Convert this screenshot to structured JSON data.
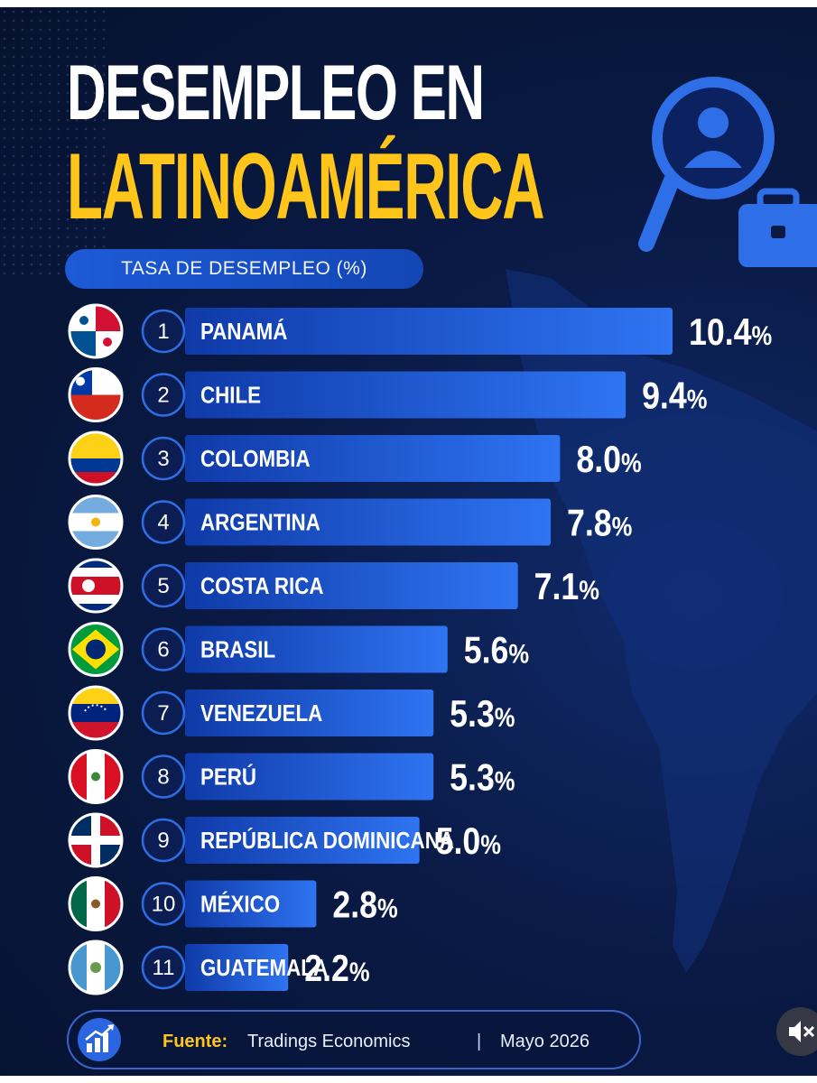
{
  "header": {
    "title_line1": "DESEMPLEO EN",
    "title_line2": "LATINOAMÉRICA",
    "subtitle": "TASA DE DESEMPLEO (%)"
  },
  "footer": {
    "source_label": "Fuente:",
    "source_value": "Tradings Economics",
    "divider": "|",
    "date": "Mayo 2026"
  },
  "icons": {
    "search": "search-person-icon",
    "briefcase": "briefcase-icon",
    "growth": "growth-chart-icon",
    "mute": "mute-icon"
  },
  "colors": {
    "background": "#0a1a45",
    "accent_yellow": "#ffc51a",
    "bar_blue": "#1f5fe0",
    "bar_blue_light": "#2f74f2"
  },
  "chart_data": {
    "type": "bar",
    "orientation": "horizontal",
    "title": "DESEMPLEO EN LATINOAMÉRICA",
    "subtitle": "TASA DE DESEMPLEO (%)",
    "unit": "%",
    "categories": [
      "PANAMÁ",
      "CHILE",
      "COLOMBIA",
      "ARGENTINA",
      "COSTA RICA",
      "BRASIL",
      "VENEZUELA",
      "PERÚ",
      "REPÚBLICA DOMINICANA",
      "MÉXICO",
      "GUATEMALA"
    ],
    "ranks": [
      "1",
      "2",
      "3",
      "4",
      "5",
      "6",
      "7",
      "8",
      "9",
      "10",
      "11"
    ],
    "values": [
      10.4,
      9.4,
      8.0,
      7.8,
      7.1,
      5.6,
      5.3,
      5.3,
      5.0,
      2.8,
      2.2
    ],
    "value_labels": [
      "10.4",
      "9.4",
      "8.0",
      "7.8",
      "7.1",
      "5.6",
      "5.3",
      "5.3",
      "5.0",
      "2.8",
      "2.2"
    ],
    "flags": [
      "panama",
      "chile",
      "colombia",
      "argentina",
      "costa-rica",
      "brazil",
      "venezuela",
      "peru",
      "dominican-republic",
      "mexico",
      "guatemala"
    ]
  }
}
